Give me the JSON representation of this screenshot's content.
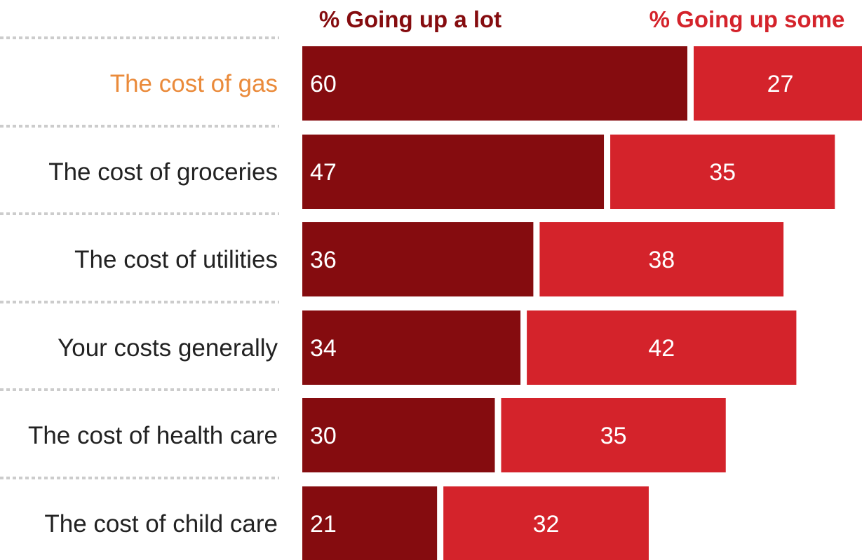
{
  "chart_data": {
    "type": "bar",
    "orientation": "horizontal",
    "stacked": true,
    "categories": [
      "The cost of gas",
      "The cost of groceries",
      "The cost of utilities",
      "Your costs generally",
      "The cost of health care",
      "The cost of child care"
    ],
    "highlighted_category": "The cost of gas",
    "series": [
      {
        "name": "% Going up a lot",
        "values": [
          60,
          47,
          36,
          34,
          30,
          21
        ],
        "color": "#850c0f"
      },
      {
        "name": "% Going up some",
        "values": [
          27,
          35,
          38,
          42,
          35,
          32
        ],
        "color": "#d4232b"
      }
    ],
    "label_color": "#222222",
    "highlight_color": "#ea8a3a",
    "value_label_color": "#ffffff",
    "legend": "top",
    "grid": false
  }
}
